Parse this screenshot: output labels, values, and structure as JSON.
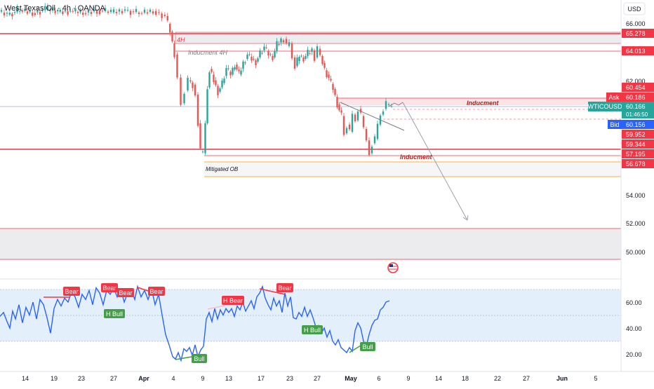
{
  "header": {
    "title": "West Texas Oil · 4h · OANDA"
  },
  "currency_button": "USD",
  "colors": {
    "up": "#26a69a",
    "down": "#ef5350",
    "level": "#f23645",
    "rsi_line": "#2962ff",
    "bull": "#43a047",
    "bear": "#f23645",
    "ob": "#ff9800",
    "band_fill": "#e3f0fc"
  },
  "chart_data": [
    {
      "type": "candlestick",
      "symbol": "WTICOUSD",
      "timeframe": "4h",
      "y_ticks": [
        "66.000",
        "62.000",
        "54.000",
        "52.000",
        "50.000"
      ],
      "ylim": [
        49.5,
        67.0
      ],
      "x_ticks": [
        "14",
        "19",
        "23",
        "27",
        "Apr",
        "4",
        "9",
        "13",
        "17",
        "23",
        "27",
        "May",
        "6",
        "9",
        "14",
        "18",
        "22",
        "27",
        "Jun",
        "5"
      ],
      "close_path": [
        [
          0,
          66.8
        ],
        [
          12,
          66.6
        ],
        [
          30,
          66.9
        ],
        [
          48,
          66.7
        ],
        [
          66,
          66.95
        ],
        [
          84,
          66.8
        ],
        [
          102,
          66.85
        ],
        [
          120,
          66.7
        ],
        [
          140,
          66.9
        ],
        [
          160,
          66.75
        ],
        [
          180,
          66.9
        ],
        [
          200,
          66.7
        ],
        [
          220,
          66.85
        ],
        [
          237,
          66.5
        ],
        [
          244,
          65.4
        ],
        [
          250,
          63.8
        ],
        [
          255,
          62.2
        ],
        [
          260,
          60.4
        ],
        [
          265,
          61.3
        ],
        [
          270,
          62.0
        ],
        [
          276,
          61.7
        ],
        [
          280,
          61.0
        ],
        [
          284,
          59.0
        ],
        [
          287,
          57.0
        ],
        [
          291,
          56.9
        ],
        [
          294,
          59.0
        ],
        [
          297,
          61.5
        ],
        [
          300,
          62.8
        ],
        [
          306,
          62.0
        ],
        [
          312,
          61.2
        ],
        [
          318,
          61.8
        ],
        [
          324,
          62.8
        ],
        [
          330,
          62.4
        ],
        [
          336,
          63.1
        ],
        [
          342,
          62.4
        ],
        [
          348,
          63.2
        ],
        [
          354,
          63.8
        ],
        [
          360,
          63.5
        ],
        [
          366,
          63.3
        ],
        [
          372,
          63.9
        ],
        [
          378,
          64.3
        ],
        [
          384,
          63.8
        ],
        [
          390,
          63.6
        ],
        [
          396,
          64.5
        ],
        [
          402,
          64.8
        ],
        [
          406,
          64.9
        ],
        [
          410,
          64.4
        ],
        [
          414,
          64.6
        ],
        [
          418,
          63.6
        ],
        [
          422,
          63.0
        ],
        [
          428,
          63.7
        ],
        [
          434,
          63.5
        ],
        [
          440,
          63.9
        ],
        [
          446,
          64.1
        ],
        [
          450,
          63.6
        ],
        [
          454,
          64.2
        ],
        [
          458,
          63.7
        ],
        [
          464,
          62.7
        ],
        [
          470,
          62.1
        ],
        [
          476,
          61.4
        ],
        [
          482,
          60.3
        ],
        [
          488,
          59.5
        ],
        [
          492,
          58.3
        ],
        [
          496,
          58.9
        ],
        [
          500,
          58.4
        ],
        [
          504,
          59.6
        ],
        [
          508,
          59.2
        ],
        [
          512,
          60.0
        ],
        [
          516,
          59.5
        ],
        [
          520,
          58.6
        ],
        [
          524,
          57.8
        ],
        [
          528,
          56.9
        ],
        [
          532,
          57.6
        ],
        [
          536,
          57.9
        ],
        [
          540,
          58.9
        ],
        [
          544,
          59.6
        ],
        [
          548,
          60.0
        ],
        [
          552,
          60.3
        ],
        [
          556,
          60.2
        ],
        [
          560,
          60.2
        ]
      ],
      "levels": [
        {
          "label": "65.278",
          "value": 65.278
        },
        {
          "label": "64.013",
          "value": 64.013
        },
        {
          "label": "60.454",
          "value": 60.454
        },
        {
          "label": "Ask",
          "value": 60.186,
          "second": "60.186"
        },
        {
          "label": "WTICOUSD",
          "value": 60.166,
          "second": "60.166",
          "third": "01:46:50"
        },
        {
          "label": "Bid",
          "value": 60.156,
          "second": "60.156"
        },
        {
          "label": "59.952",
          "value": 59.952
        },
        {
          "label": "59.344",
          "value": 59.344
        },
        {
          "label": "57.195",
          "value": 57.195
        },
        {
          "label": "56.678",
          "value": 56.678
        }
      ],
      "annotations": {
        "tag_4h": "4H",
        "inducement_4h": "Inducment 4H",
        "inducement_top": "Inducment",
        "inducement_bottom": "Inducment",
        "mitigated_ob": "Mitigated OB"
      }
    },
    {
      "type": "line",
      "name": "RSI",
      "y_ticks": [
        "60.00",
        "40.00",
        "20.00"
      ],
      "ylim": [
        10,
        75
      ],
      "band": [
        30,
        70
      ],
      "midline": 50,
      "series": [
        [
          0,
          49
        ],
        [
          5,
          52
        ],
        [
          10,
          45
        ],
        [
          14,
          40
        ],
        [
          18,
          53
        ],
        [
          22,
          47
        ],
        [
          27,
          58
        ],
        [
          32,
          44
        ],
        [
          37,
          56
        ],
        [
          42,
          50
        ],
        [
          47,
          60
        ],
        [
          52,
          47
        ],
        [
          57,
          62
        ],
        [
          62,
          58
        ],
        [
          67,
          48
        ],
        [
          72,
          36
        ],
        [
          77,
          55
        ],
        [
          82,
          62
        ],
        [
          87,
          57
        ],
        [
          92,
          63
        ],
        [
          97,
          60
        ],
        [
          102,
          68
        ],
        [
          107,
          64
        ],
        [
          112,
          56
        ],
        [
          117,
          66
        ],
        [
          122,
          62
        ],
        [
          127,
          69
        ],
        [
          132,
          58
        ],
        [
          137,
          71
        ],
        [
          142,
          67
        ],
        [
          147,
          58
        ],
        [
          152,
          69
        ],
        [
          157,
          66
        ],
        [
          162,
          71
        ],
        [
          167,
          64
        ],
        [
          172,
          70
        ],
        [
          177,
          60
        ],
        [
          182,
          67
        ],
        [
          187,
          70
        ],
        [
          192,
          62
        ],
        [
          196,
          72
        ],
        [
          201,
          64
        ],
        [
          206,
          69
        ],
        [
          211,
          62
        ],
        [
          216,
          70
        ],
        [
          221,
          58
        ],
        [
          226,
          66
        ],
        [
          231,
          50
        ],
        [
          236,
          35
        ],
        [
          241,
          27
        ],
        [
          246,
          18
        ],
        [
          250,
          16
        ],
        [
          254,
          21
        ],
        [
          258,
          15
        ],
        [
          262,
          24
        ],
        [
          266,
          22
        ],
        [
          270,
          25
        ],
        [
          274,
          19
        ],
        [
          278,
          27
        ],
        [
          282,
          18
        ],
        [
          286,
          23
        ],
        [
          290,
          26
        ],
        [
          294,
          47
        ],
        [
          298,
          52
        ],
        [
          302,
          45
        ],
        [
          306,
          55
        ],
        [
          310,
          47
        ],
        [
          314,
          54
        ],
        [
          318,
          50
        ],
        [
          322,
          55
        ],
        [
          326,
          52
        ],
        [
          330,
          55
        ],
        [
          334,
          49
        ],
        [
          338,
          57
        ],
        [
          342,
          54
        ],
        [
          346,
          60
        ],
        [
          350,
          53
        ],
        [
          354,
          57
        ],
        [
          358,
          61
        ],
        [
          362,
          55
        ],
        [
          366,
          64
        ],
        [
          370,
          67
        ],
        [
          374,
          72
        ],
        [
          378,
          63
        ],
        [
          382,
          58
        ],
        [
          386,
          54
        ],
        [
          390,
          63
        ],
        [
          394,
          57
        ],
        [
          398,
          61
        ],
        [
          402,
          52
        ],
        [
          406,
          67
        ],
        [
          410,
          57
        ],
        [
          414,
          64
        ],
        [
          418,
          48
        ],
        [
          422,
          47
        ],
        [
          426,
          52
        ],
        [
          430,
          49
        ],
        [
          434,
          56
        ],
        [
          438,
          49
        ],
        [
          442,
          54
        ],
        [
          446,
          48
        ],
        [
          450,
          41
        ],
        [
          454,
          42
        ],
        [
          458,
          36
        ],
        [
          462,
          40
        ],
        [
          466,
          33
        ],
        [
          470,
          38
        ],
        [
          474,
          30
        ],
        [
          478,
          27
        ],
        [
          482,
          31
        ],
        [
          486,
          25
        ],
        [
          490,
          23
        ],
        [
          494,
          21
        ],
        [
          498,
          25
        ],
        [
          502,
          22
        ],
        [
          506,
          38
        ],
        [
          510,
          44
        ],
        [
          514,
          40
        ],
        [
          518,
          30
        ],
        [
          522,
          26
        ],
        [
          526,
          35
        ],
        [
          530,
          42
        ],
        [
          534,
          46
        ],
        [
          538,
          47
        ],
        [
          542,
          54
        ],
        [
          546,
          56
        ],
        [
          550,
          60
        ],
        [
          555,
          61
        ]
      ],
      "labels": {
        "bear_1": "Bear",
        "bear_2": "Bear",
        "bear_3": "Bear",
        "bear_4": "Bear",
        "bear_5": "Bear",
        "h_bull_1": "H Bull",
        "bull_1": "Bull",
        "h_bear": "H Bear",
        "h_bull_2": "H Bull",
        "bull_2": "Bull"
      }
    }
  ]
}
